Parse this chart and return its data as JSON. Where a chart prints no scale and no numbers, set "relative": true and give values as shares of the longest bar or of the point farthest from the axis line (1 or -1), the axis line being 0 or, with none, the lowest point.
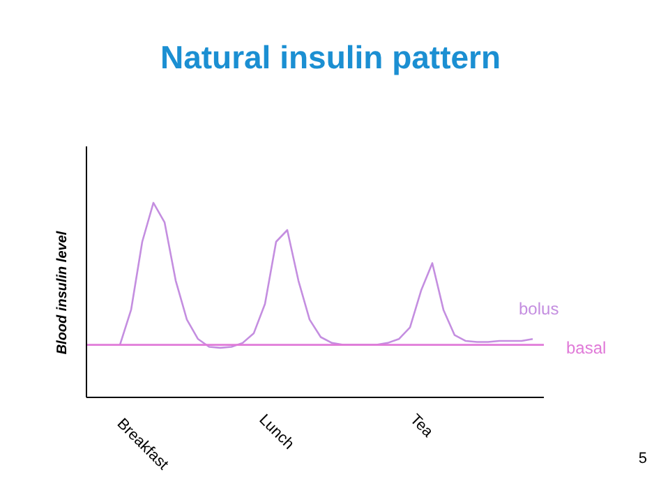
{
  "chart_data": {
    "type": "line",
    "title": "Natural insulin pattern",
    "ylabel": "Blood insulin level",
    "relative": true,
    "legend": false,
    "grid": false,
    "marker": "none",
    "annotations": [
      "5"
    ],
    "categories": [
      null,
      null,
      null,
      null,
      null,
      "Breakfast",
      null,
      null,
      null,
      null,
      null,
      null,
      null,
      null,
      null,
      null,
      null,
      "Lunch",
      null,
      null,
      null,
      null,
      null,
      null,
      null,
      null,
      null,
      null,
      null,
      null,
      "Tea",
      null,
      null,
      null,
      null,
      null,
      null,
      null,
      null,
      null,
      null,
      null
    ],
    "series": [
      {
        "name": "bolus",
        "color": "#c48ee0",
        "values": [
          null,
          null,
          null,
          0.27,
          0.45,
          0.8,
          1.0,
          0.9,
          0.6,
          0.4,
          0.3,
          0.26,
          0.255,
          0.26,
          0.28,
          0.33,
          0.48,
          0.8,
          0.86,
          0.6,
          0.4,
          0.31,
          0.28,
          0.27,
          0.27,
          0.27,
          0.27,
          0.28,
          0.3,
          0.36,
          0.55,
          0.69,
          0.45,
          0.32,
          0.29,
          0.285,
          0.285,
          0.29,
          0.29,
          0.29,
          0.3,
          null
        ]
      },
      {
        "name": "basal",
        "color": "#e07ad8",
        "values": [
          0.27,
          0.27,
          0.27,
          0.27,
          0.27,
          0.27,
          0.27,
          0.27,
          0.27,
          0.27,
          0.27,
          0.27,
          0.27,
          0.27,
          0.27,
          0.27,
          0.27,
          0.27,
          0.27,
          0.27,
          0.27,
          0.27,
          0.27,
          0.27,
          0.27,
          0.27,
          0.27,
          0.27,
          0.27,
          0.27,
          0.27,
          0.27,
          0.27,
          0.27,
          0.27,
          0.27,
          0.27,
          0.27,
          0.27,
          0.27,
          0.27,
          0.27
        ]
      }
    ]
  }
}
